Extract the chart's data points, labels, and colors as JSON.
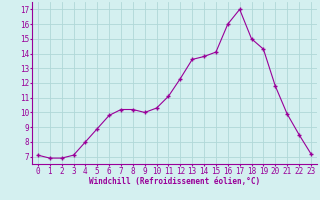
{
  "x": [
    0,
    1,
    2,
    3,
    4,
    5,
    6,
    7,
    8,
    9,
    10,
    11,
    12,
    13,
    14,
    15,
    16,
    17,
    18,
    19,
    20,
    21,
    22,
    23
  ],
  "y": [
    7.1,
    6.9,
    6.9,
    7.1,
    8.0,
    8.9,
    9.8,
    10.2,
    10.2,
    10.0,
    10.3,
    11.1,
    12.3,
    13.6,
    13.8,
    14.1,
    16.0,
    17.0,
    15.0,
    14.3,
    11.8,
    9.9,
    8.5,
    7.2
  ],
  "line_color": "#990099",
  "marker": "+",
  "bg_color": "#d4f0f0",
  "grid_color": "#b0d8d8",
  "axis_label_color": "#990099",
  "xlabel": "Windchill (Refroidissement éolien,°C)",
  "xlim": [
    -0.5,
    23.5
  ],
  "ylim": [
    6.5,
    17.5
  ],
  "yticks": [
    7,
    8,
    9,
    10,
    11,
    12,
    13,
    14,
    15,
    16,
    17
  ],
  "xticks": [
    0,
    1,
    2,
    3,
    4,
    5,
    6,
    7,
    8,
    9,
    10,
    11,
    12,
    13,
    14,
    15,
    16,
    17,
    18,
    19,
    20,
    21,
    22,
    23
  ],
  "label_fontsize": 5.5,
  "tick_fontsize": 5.5
}
